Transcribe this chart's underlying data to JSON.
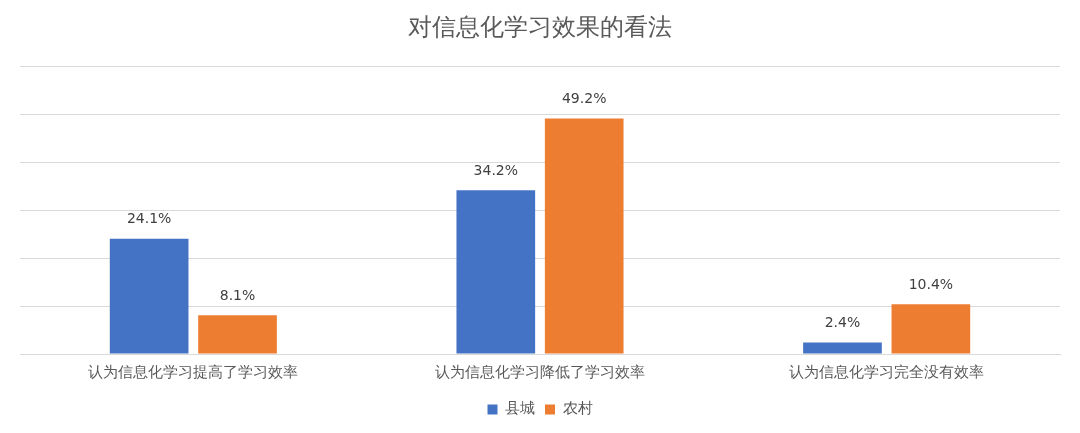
{
  "chart_data": {
    "type": "bar",
    "title": "对信息化学习效果的看法",
    "categories": [
      "认为信息化学习提高了学习效率",
      "认为信息化学习降低了学习效率",
      "认为信息化学习完全没有效率"
    ],
    "series": [
      {
        "name": "县城",
        "color": "#4472c4",
        "values": [
          24.1,
          34.2,
          2.4
        ],
        "value_labels": [
          "24.1%",
          "34.2%",
          "2.4%"
        ]
      },
      {
        "name": "农村",
        "color": "#ed7d31",
        "values": [
          8.1,
          49.2,
          10.4
        ],
        "value_labels": [
          "8.1%",
          "49.2%",
          "10.4%"
        ]
      }
    ],
    "ylim": [
      0,
      60
    ],
    "yticks": [
      {
        "value": 0,
        "label": null
      },
      {
        "value": 10,
        "label": null
      },
      {
        "value": 20,
        "label": null
      },
      {
        "value": 30,
        "label": null
      },
      {
        "value": 40,
        "label": null
      },
      {
        "value": 50,
        "label": null
      },
      {
        "value": 60,
        "label": null
      }
    ],
    "grid": "y",
    "legend": "bottom",
    "tick_labels": "x"
  }
}
